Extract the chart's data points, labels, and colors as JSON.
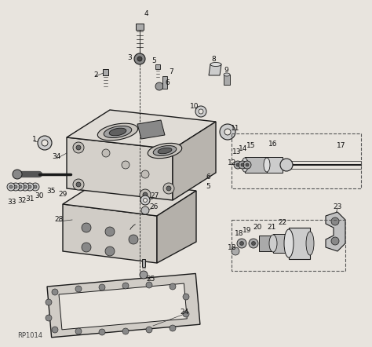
{
  "background_color": "#e8e4de",
  "line_color": "#1a1a1a",
  "text_color": "#111111",
  "watermark": "RP1014",
  "fig_width": 4.74,
  "fig_height": 4.42,
  "dpi": 100
}
